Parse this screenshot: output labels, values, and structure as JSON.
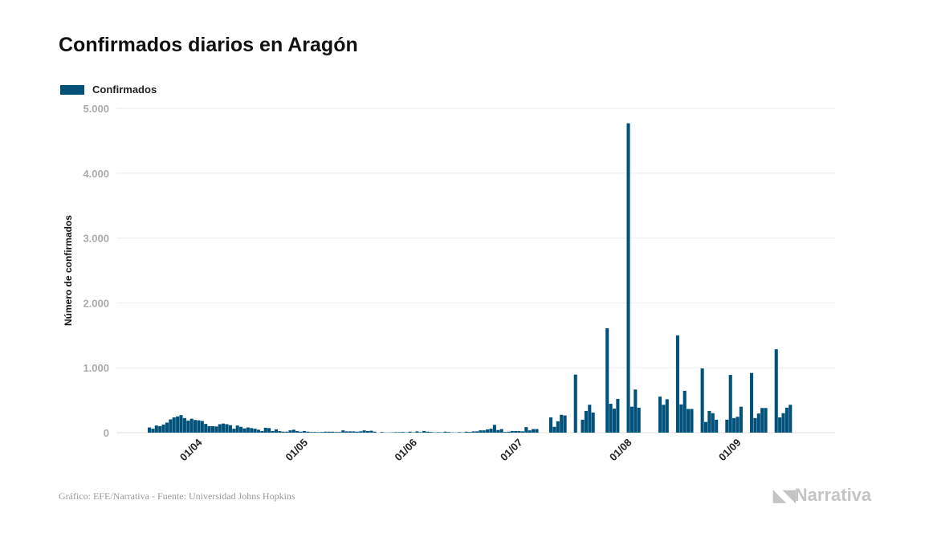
{
  "chart_data": {
    "type": "bar",
    "title": "Confirmados diarios en Aragón",
    "legend": [
      "Confirmados"
    ],
    "legend_position": "top-left",
    "ylabel": "Número de confirmados",
    "xlabel": "",
    "ylim": [
      0,
      5000
    ],
    "yticks": [
      "0",
      "1.000",
      "2.000",
      "3.000",
      "4.000",
      "5.000"
    ],
    "grid": true,
    "color": "#00527a",
    "x_start_day": "18/03",
    "xticks": [
      {
        "label": "01/04",
        "day_index": 14
      },
      {
        "label": "01/05",
        "day_index": 44
      },
      {
        "label": "01/06",
        "day_index": 75
      },
      {
        "label": "01/07",
        "day_index": 105
      },
      {
        "label": "01/08",
        "day_index": 136
      },
      {
        "label": "01/09",
        "day_index": 167
      }
    ],
    "series": [
      {
        "name": "Confirmados",
        "values": [
          80,
          60,
          110,
          100,
          125,
          155,
          205,
          235,
          250,
          270,
          225,
          185,
          215,
          195,
          190,
          180,
          135,
          100,
          100,
          95,
          130,
          140,
          130,
          115,
          60,
          110,
          90,
          65,
          80,
          70,
          60,
          45,
          25,
          75,
          70,
          25,
          50,
          25,
          15,
          15,
          35,
          45,
          25,
          15,
          25,
          15,
          10,
          10,
          8,
          10,
          15,
          15,
          15,
          10,
          10,
          35,
          20,
          20,
          20,
          15,
          20,
          35,
          25,
          30,
          15,
          0,
          10,
          3,
          3,
          5,
          8,
          8,
          10,
          5,
          15,
          5,
          20,
          8,
          25,
          15,
          10,
          5,
          8,
          5,
          15,
          10,
          5,
          3,
          8,
          5,
          15,
          10,
          20,
          20,
          35,
          35,
          50,
          60,
          120,
          40,
          55,
          10,
          15,
          25,
          25,
          25,
          20,
          85,
          35,
          55,
          55,
          0,
          0,
          0,
          235,
          90,
          175,
          275,
          265,
          0,
          0,
          895,
          0,
          200,
          335,
          430,
          310,
          0,
          0,
          0,
          1610,
          445,
          370,
          520,
          0,
          0,
          4770,
          400,
          665,
          385,
          0,
          0,
          0,
          0,
          0,
          555,
          430,
          515,
          0,
          0,
          1500,
          435,
          645,
          365,
          365,
          0,
          0,
          990,
          165,
          335,
          300,
          200,
          0,
          0,
          200,
          890,
          225,
          245,
          400,
          0,
          0,
          920,
          225,
          295,
          380,
          380,
          0,
          0,
          1285,
          235,
          300,
          385,
          430
        ]
      }
    ]
  },
  "footer": {
    "source": "Gráfico: EFE/Narrativa - Fuente: Universidad Johns Hopkins",
    "logo": "Narrativa"
  }
}
